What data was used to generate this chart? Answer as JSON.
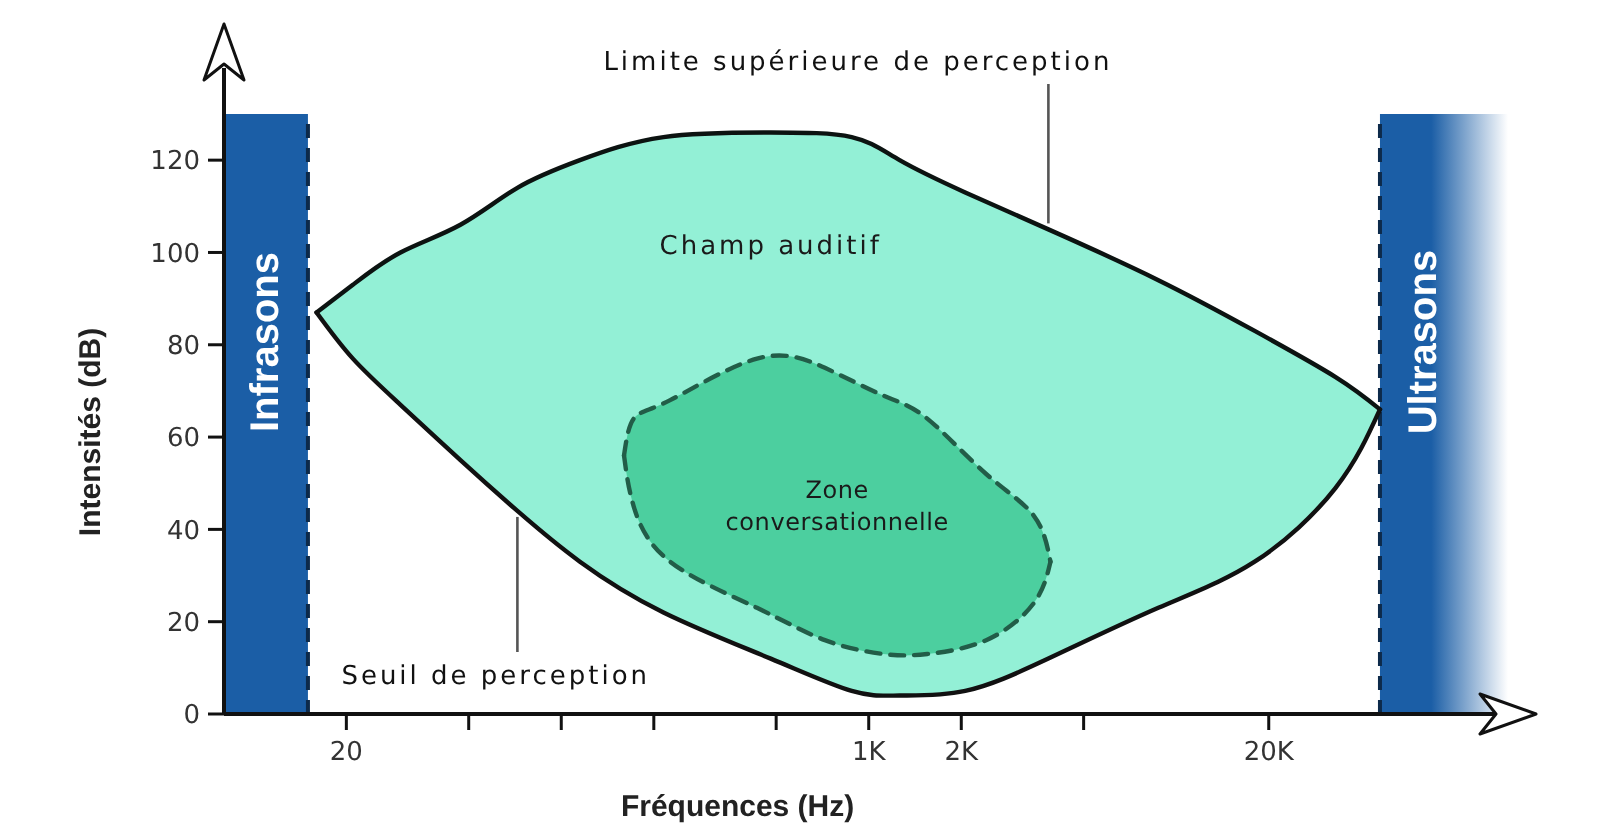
{
  "chart_data": {
    "type": "line",
    "xlabel": "Fréquences (Hz)",
    "ylabel": "Intensités (dB)",
    "log": "x",
    "xlim": [
      8,
      120000
    ],
    "xticks": [
      20,
      {
        "value": 50,
        "label": null
      },
      {
        "value": 100,
        "label": null
      },
      {
        "value": 200,
        "label": null
      },
      {
        "value": 500,
        "label": null
      },
      {
        "value": 1000,
        "label": "1K"
      },
      {
        "value": 2000,
        "label": "2K"
      },
      {
        "value": 5000,
        "label": null
      },
      {
        "value": 20000,
        "label": "20K"
      }
    ],
    "ylim": [
      0,
      130
    ],
    "yticks": [
      0,
      20,
      40,
      60,
      80,
      100,
      120
    ],
    "series": [
      {
        "name": "Champ auditif",
        "type": "area",
        "color": "#93f0d6",
        "line_style": "solid",
        "x": [
          16,
          21,
          30,
          47,
          72,
          115,
          215,
          480,
          880,
          1260,
          2060,
          3840,
          8750,
          18000,
          33000,
          46000
        ],
        "values": [
          87,
          93,
          100,
          106,
          114,
          120,
          125,
          126,
          125,
          120,
          113,
          105,
          94,
          83,
          73,
          66
        ]
      },
      {
        "color": "#111111",
        "line_style": "solid",
        "x": [
          16,
          21,
          30,
          47,
          72,
          115,
          215,
          480,
          880,
          1260,
          2060,
          3840,
          8750,
          18000,
          33000,
          46000
        ],
        "values": [
          87,
          77,
          67,
          55,
          44,
          33,
          22,
          12,
          5,
          4,
          5,
          12,
          23,
          33,
          49,
          66
        ]
      },
      {
        "name": "Zone conversationnelle",
        "type": "area",
        "color": "#4ccf9f",
        "line_style": "dashed",
        "x": [
          160,
          172,
          226,
          433,
          720,
          1115,
          1550,
          2410,
          3440,
          3900
        ],
        "values": [
          56,
          64,
          68,
          77,
          75,
          69,
          64,
          52,
          43,
          33
        ]
      },
      {
        "color": "#225d48",
        "line_style": "dashed",
        "x": [
          160,
          172,
          226,
          433,
          720,
          1115,
          1550,
          2410,
          3440,
          3900
        ],
        "values": [
          56,
          45,
          33,
          23,
          16,
          13,
          13,
          16,
          24,
          33
        ]
      }
    ],
    "bands": [
      {
        "axis": "x",
        "from": 8,
        "to": 15,
        "label": "Infrasons",
        "color": "#1b5ea6"
      },
      {
        "axis": "x",
        "from": 46000,
        "to": 120000,
        "label": "Ultrasons",
        "color": "#1b5ea6"
      }
    ],
    "ref_lines": [
      {
        "axis": "x",
        "value": 15,
        "color": "#0d2a4a",
        "line_style": "dashed"
      },
      {
        "axis": "x",
        "value": 46000,
        "color": "#0d2a4a",
        "line_style": "dashed"
      }
    ],
    "annotations": [
      {
        "text": "Limite supérieure de perception",
        "x": 3840,
        "y": 105
      },
      {
        "text": "Seuil de perception",
        "x": 72,
        "y": 44
      }
    ]
  }
}
